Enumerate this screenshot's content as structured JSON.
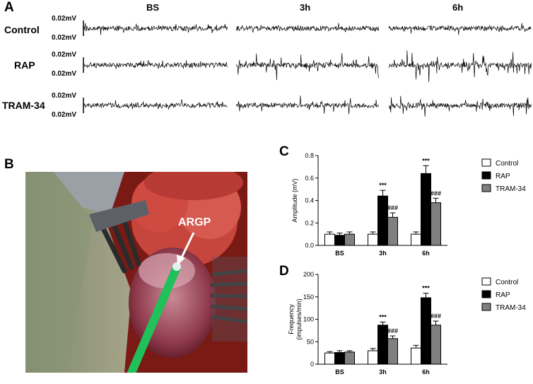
{
  "figure": {
    "panel_a_label": "A",
    "panel_b_label": "B",
    "panel_c_label": "C",
    "panel_d_label": "D"
  },
  "panel_a": {
    "columns": [
      "BS",
      "3h",
      "6h"
    ],
    "rows": [
      {
        "label": "Control",
        "scale_top": "0.02mV",
        "scale_bottom": "0.02mV",
        "activity": [
          1,
          1,
          1.2
        ]
      },
      {
        "label": "RAP",
        "scale_top": "0.02mV",
        "scale_bottom": "0.02mV",
        "activity": [
          1,
          3.2,
          4.2
        ]
      },
      {
        "label": "TRAM-34",
        "scale_top": "0.02mV",
        "scale_bottom": "0.02mV",
        "activity": [
          1,
          2.0,
          2.8
        ]
      }
    ]
  },
  "panel_b": {
    "annotation": "ARGP"
  },
  "chart_data": [
    {
      "type": "bar",
      "panel": "C",
      "categories": [
        "BS",
        "3h",
        "6h"
      ],
      "ylabel": "Amplitude (mV)",
      "ylim": [
        0,
        0.8
      ],
      "yticks": [
        "0.0",
        "0.2",
        "0.4",
        "0.6",
        "0.8"
      ],
      "series": [
        {
          "name": "Control",
          "color": "#ffffff",
          "values": [
            0.1,
            0.1,
            0.1
          ],
          "errors": [
            0.02,
            0.02,
            0.02
          ],
          "marks": [
            "",
            "",
            ""
          ]
        },
        {
          "name": "RAP",
          "color": "#000000",
          "values": [
            0.09,
            0.44,
            0.64
          ],
          "errors": [
            0.02,
            0.05,
            0.07
          ],
          "marks": [
            "",
            "***",
            "***"
          ]
        },
        {
          "name": "TRAM-34",
          "color": "#808080",
          "values": [
            0.1,
            0.25,
            0.38
          ],
          "errors": [
            0.02,
            0.04,
            0.04
          ],
          "marks": [
            "",
            "###",
            "###"
          ]
        }
      ]
    },
    {
      "type": "bar",
      "panel": "D",
      "categories": [
        "BS",
        "3h",
        "6h"
      ],
      "ylabel": "Frequency\n(impulses/min)",
      "ylim": [
        0,
        200
      ],
      "yticks": [
        "0",
        "50",
        "100",
        "150",
        "200"
      ],
      "series": [
        {
          "name": "Control",
          "color": "#ffffff",
          "values": [
            25,
            30,
            36
          ],
          "errors": [
            3,
            5,
            6
          ],
          "marks": [
            "",
            "",
            ""
          ]
        },
        {
          "name": "RAP",
          "color": "#000000",
          "values": [
            26,
            87,
            148
          ],
          "errors": [
            4,
            7,
            10
          ],
          "marks": [
            "",
            "***",
            "***"
          ]
        },
        {
          "name": "TRAM-34",
          "color": "#808080",
          "values": [
            27,
            57,
            87
          ],
          "errors": [
            3,
            6,
            9
          ],
          "marks": [
            "",
            "###",
            "###"
          ]
        }
      ]
    }
  ]
}
